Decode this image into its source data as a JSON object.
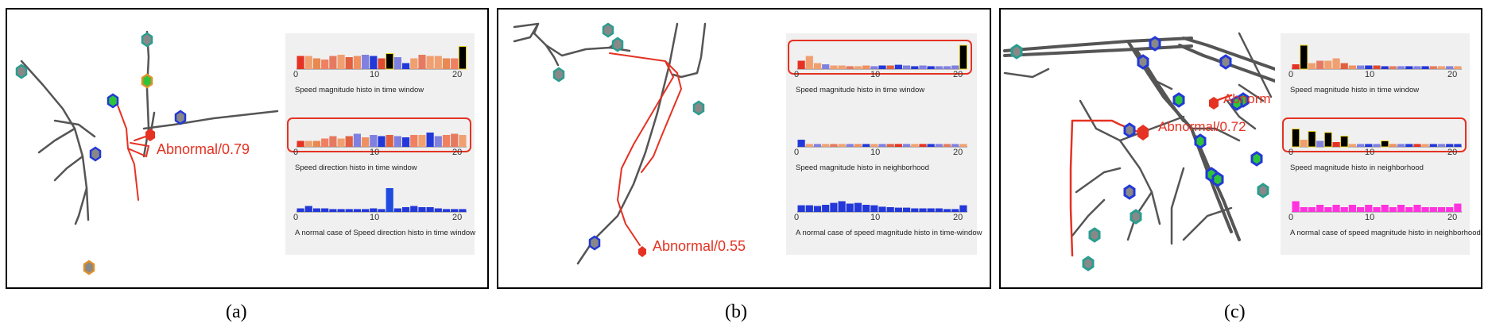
{
  "colors": {
    "abnormal": "#e53222",
    "track": "#555555",
    "node_teal": "#2a9d8f",
    "node_blue": "#2338d8",
    "node_orange": "#e0902a",
    "node_green": "#2ec43a",
    "histo_bg": "#f0f0f0"
  },
  "panels": [
    {
      "id": "a",
      "label": "(a)",
      "abnormal_label": "Abnormal/0.79",
      "histograms": [
        {
          "caption": "Speed magnitude histo in time window",
          "ticks": [
            "0",
            "10",
            "20"
          ],
          "highlighted": false,
          "bars": [
            0.55,
            0.55,
            0.45,
            0.4,
            0.55,
            0.6,
            0.5,
            0.55,
            0.6,
            0.55,
            0.45,
            0.65,
            0.5,
            0.25,
            0.45,
            0.6,
            0.55,
            0.55,
            0.45,
            0.45,
            0.95
          ],
          "colors": [
            "#e53222",
            "#f0a070",
            "#e98850",
            "#f08060",
            "#e67a60",
            "#f0a070",
            "#e06040",
            "#f09060",
            "#8080e0",
            "#2338d8",
            "#e04a30",
            "#000000",
            "#8080e0",
            "#2338d8",
            "#f0a070",
            "#e67a60",
            "#f0a070",
            "#f0a070",
            "#e98850",
            "#f08060",
            "#000000"
          ]
        },
        {
          "caption": "Speed direction histo in time window",
          "ticks": [
            "0",
            "10",
            "20"
          ],
          "highlighted": true,
          "bars": [
            0.25,
            0.25,
            0.25,
            0.35,
            0.45,
            0.35,
            0.45,
            0.55,
            0.4,
            0.5,
            0.45,
            0.5,
            0.45,
            0.4,
            0.5,
            0.5,
            0.6,
            0.45,
            0.5,
            0.55,
            0.5
          ],
          "colors": [
            "#e53222",
            "#f0a070",
            "#e98850",
            "#f08060",
            "#e67a60",
            "#f0a070",
            "#e06040",
            "#8080e0",
            "#f09060",
            "#8080e0",
            "#2338d8",
            "#e06040",
            "#8080e0",
            "#2338d8",
            "#f08060",
            "#f0a070",
            "#2338d8",
            "#8080e0",
            "#f08060",
            "#e67a60",
            "#f0a070"
          ]
        },
        {
          "caption": "A normal case of Speed direction histo in time window",
          "ticks": [
            "0",
            "10",
            "20"
          ],
          "highlighted": false,
          "bars": [
            0.15,
            0.25,
            0.15,
            0.15,
            0.12,
            0.12,
            0.12,
            0.12,
            0.12,
            0.15,
            0.12,
            1.0,
            0.15,
            0.2,
            0.25,
            0.2,
            0.2,
            0.15,
            0.12,
            0.12,
            0.12
          ],
          "colors": [
            "#2338d8",
            "#2338d8",
            "#2338d8",
            "#2338d8",
            "#2338d8",
            "#2338d8",
            "#2338d8",
            "#2338d8",
            "#2338d8",
            "#2338d8",
            "#2338d8",
            "#1f4ce0",
            "#2338d8",
            "#2338d8",
            "#2338d8",
            "#2338d8",
            "#2338d8",
            "#2338d8",
            "#2338d8",
            "#2338d8",
            "#2338d8"
          ]
        }
      ]
    },
    {
      "id": "b",
      "label": "(b)",
      "abnormal_label": "Abnormal/0.55",
      "histograms": [
        {
          "caption": "Speed magnitude histo in time window",
          "ticks": [
            "0",
            "10",
            "20"
          ],
          "highlighted": true,
          "bars": [
            0.35,
            0.55,
            0.25,
            0.2,
            0.15,
            0.15,
            0.12,
            0.12,
            0.15,
            0.12,
            0.15,
            0.15,
            0.18,
            0.15,
            0.12,
            0.15,
            0.12,
            0.12,
            0.12,
            0.15,
            1.0
          ],
          "colors": [
            "#e53222",
            "#f0a070",
            "#f0a070",
            "#8080e0",
            "#f0a070",
            "#f0a070",
            "#e67a60",
            "#f0a070",
            "#f09060",
            "#8080e0",
            "#2338d8",
            "#e06040",
            "#2338d8",
            "#8080e0",
            "#2338d8",
            "#8080e0",
            "#2338d8",
            "#8080e0",
            "#8080e0",
            "#8080e0",
            "#000000"
          ]
        },
        {
          "caption": "Speed magnitude histo in neighborhood",
          "ticks": [
            "0",
            "10",
            "20"
          ],
          "highlighted": false,
          "bars": [
            0.3,
            0.12,
            0.12,
            0.12,
            0.12,
            0.12,
            0.12,
            0.12,
            0.12,
            0.12,
            0.12,
            0.12,
            0.12,
            0.12,
            0.12,
            0.12,
            0.12,
            0.12,
            0.12,
            0.12,
            0.12
          ],
          "colors": [
            "#2338d8",
            "#f0a070",
            "#8080e0",
            "#f0a070",
            "#e67a60",
            "#f0a070",
            "#8080e0",
            "#f09060",
            "#2338d8",
            "#f0a070",
            "#8080e0",
            "#e06040",
            "#e53222",
            "#8080e0",
            "#f0a070",
            "#e53222",
            "#2338d8",
            "#8080e0",
            "#e67a60",
            "#8080e0",
            "#f0a070"
          ]
        },
        {
          "caption": "A normal case of speed magnitude histo in time-window",
          "ticks": [
            "0",
            "10",
            "20"
          ],
          "highlighted": false,
          "bars": [
            0.28,
            0.28,
            0.25,
            0.3,
            0.38,
            0.45,
            0.35,
            0.38,
            0.3,
            0.28,
            0.22,
            0.2,
            0.18,
            0.18,
            0.15,
            0.15,
            0.15,
            0.15,
            0.12,
            0.12,
            0.28
          ],
          "colors": [
            "#2338d8",
            "#2338d8",
            "#2338d8",
            "#2338d8",
            "#2338d8",
            "#2338d8",
            "#2338d8",
            "#2338d8",
            "#2338d8",
            "#2338d8",
            "#2338d8",
            "#2338d8",
            "#2338d8",
            "#2338d8",
            "#2338d8",
            "#2338d8",
            "#2338d8",
            "#2338d8",
            "#2338d8",
            "#2338d8",
            "#2338d8"
          ]
        }
      ]
    },
    {
      "id": "c",
      "label": "(c)",
      "abnormal_label": "Abnormal/0.72",
      "abnormal_label_2": "Abnorm",
      "histograms": [
        {
          "caption": "Speed magnitude histo in time window",
          "ticks": [
            "0",
            "10",
            "20"
          ],
          "highlighted": false,
          "bars": [
            0.2,
            1.0,
            0.25,
            0.35,
            0.35,
            0.45,
            0.25,
            0.15,
            0.15,
            0.15,
            0.15,
            0.12,
            0.12,
            0.12,
            0.12,
            0.12,
            0.12,
            0.12,
            0.12,
            0.12,
            0.12
          ],
          "colors": [
            "#e53222",
            "#000000",
            "#f0a070",
            "#e67a60",
            "#f0a070",
            "#f0a070",
            "#e06040",
            "#f09060",
            "#8080e0",
            "#2338d8",
            "#e04a30",
            "#2338d8",
            "#e67a60",
            "#8080e0",
            "#2338d8",
            "#8080e0",
            "#2338d8",
            "#e67a60",
            "#f0a070",
            "#8080e0",
            "#f0a070"
          ]
        },
        {
          "caption": "Speed magnitude histo in neighborhood",
          "ticks": [
            "0",
            "10",
            "20"
          ],
          "highlighted": true,
          "bars": [
            0.75,
            0.3,
            0.65,
            0.25,
            0.6,
            0.2,
            0.45,
            0.12,
            0.12,
            0.12,
            0.12,
            0.25,
            0.12,
            0.12,
            0.12,
            0.12,
            0.12,
            0.12,
            0.12,
            0.12,
            0.12
          ],
          "colors": [
            "#000000",
            "#f0a070",
            "#000000",
            "#8080e0",
            "#000000",
            "#e53222",
            "#000000",
            "#f0a070",
            "#8080e0",
            "#2338d8",
            "#8080e0",
            "#000000",
            "#f09060",
            "#8080e0",
            "#2338d8",
            "#e53222",
            "#f0a070",
            "#2338d8",
            "#8080e0",
            "#2338d8",
            "#2338d8"
          ]
        },
        {
          "caption": "A normal case of speed magnitude histo in neighborhood",
          "ticks": [
            "0",
            "10",
            "20"
          ],
          "highlighted": false,
          "bars": [
            0.45,
            0.2,
            0.2,
            0.3,
            0.2,
            0.3,
            0.2,
            0.3,
            0.2,
            0.3,
            0.2,
            0.3,
            0.2,
            0.3,
            0.2,
            0.3,
            0.2,
            0.2,
            0.2,
            0.2,
            0.35
          ],
          "colors": [
            "#ff33dd",
            "#ff33dd",
            "#ff33dd",
            "#ff33dd",
            "#ff33dd",
            "#ff33dd",
            "#ff33dd",
            "#ff33dd",
            "#ff33dd",
            "#ff33dd",
            "#ff33dd",
            "#ff33dd",
            "#ff33dd",
            "#ff33dd",
            "#ff33dd",
            "#ff33dd",
            "#ff33dd",
            "#ff33dd",
            "#ff33dd",
            "#ff33dd",
            "#ff33dd"
          ]
        }
      ]
    }
  ]
}
